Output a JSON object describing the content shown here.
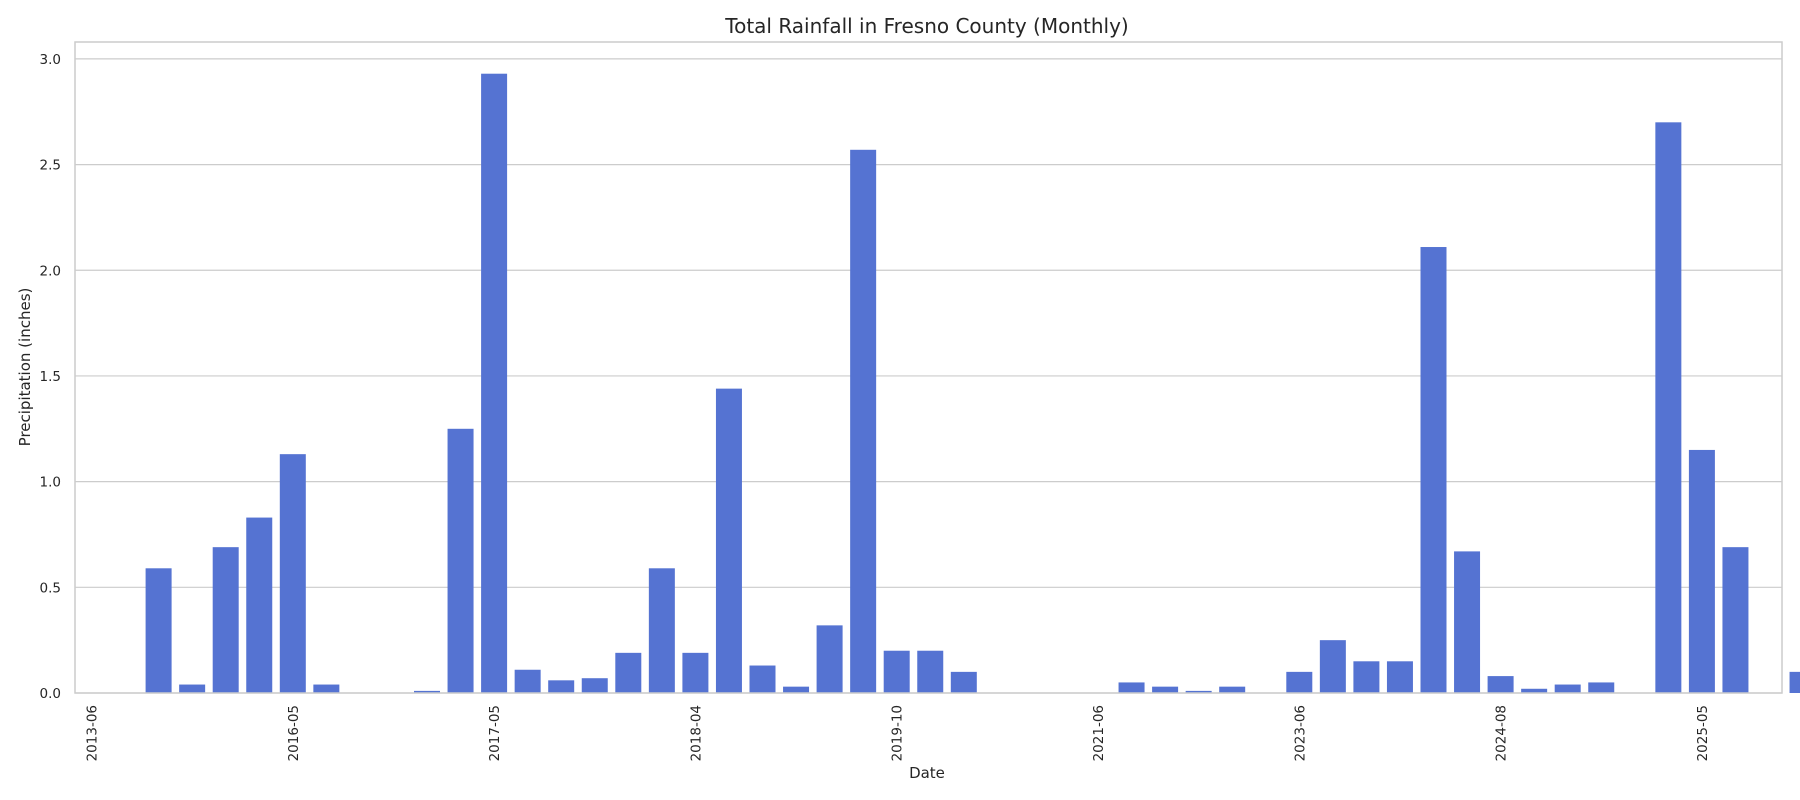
{
  "chart_data": {
    "type": "bar",
    "title": "Total Rainfall in Fresno County (Monthly)",
    "xlabel": "Date",
    "ylabel": "Precipitation (inches)",
    "ylim": [
      0,
      3.08
    ],
    "yticks": [
      "0.0",
      "0.5",
      "1.0",
      "1.5",
      "2.0",
      "2.5",
      "3.0"
    ],
    "grid": "horizontal",
    "bar_color": "#5573d2",
    "values": [
      0,
      0,
      0.59,
      0.04,
      0.69,
      0.83,
      1.13,
      0.04,
      0,
      0,
      0.01,
      1.25,
      2.93,
      0.11,
      0.06,
      0.07,
      0.19,
      0.59,
      0.19,
      1.44,
      0.13,
      0.03,
      0.32,
      2.57,
      0.2,
      0.2,
      0.1,
      0,
      0,
      0,
      0,
      0.05,
      0.03,
      0.01,
      0.03,
      0,
      0.1,
      0.25,
      0.15,
      0.15,
      2.11,
      0.67,
      0.08,
      0.02,
      0.04,
      0.05,
      0,
      2.7,
      1.15,
      0.69,
      0,
      0.1
    ],
    "xtick_labels": [
      {
        "index": 0,
        "label": "2013-06"
      },
      {
        "index": 6,
        "label": "2016-05"
      },
      {
        "index": 12,
        "label": "2017-05"
      },
      {
        "index": 18,
        "label": "2018-04"
      },
      {
        "index": 24,
        "label": "2019-10"
      },
      {
        "index": 30,
        "label": "2021-06"
      },
      {
        "index": 36,
        "label": "2023-06"
      },
      {
        "index": 42,
        "label": "2024-08"
      },
      {
        "index": 48,
        "label": "2025-05"
      }
    ]
  }
}
